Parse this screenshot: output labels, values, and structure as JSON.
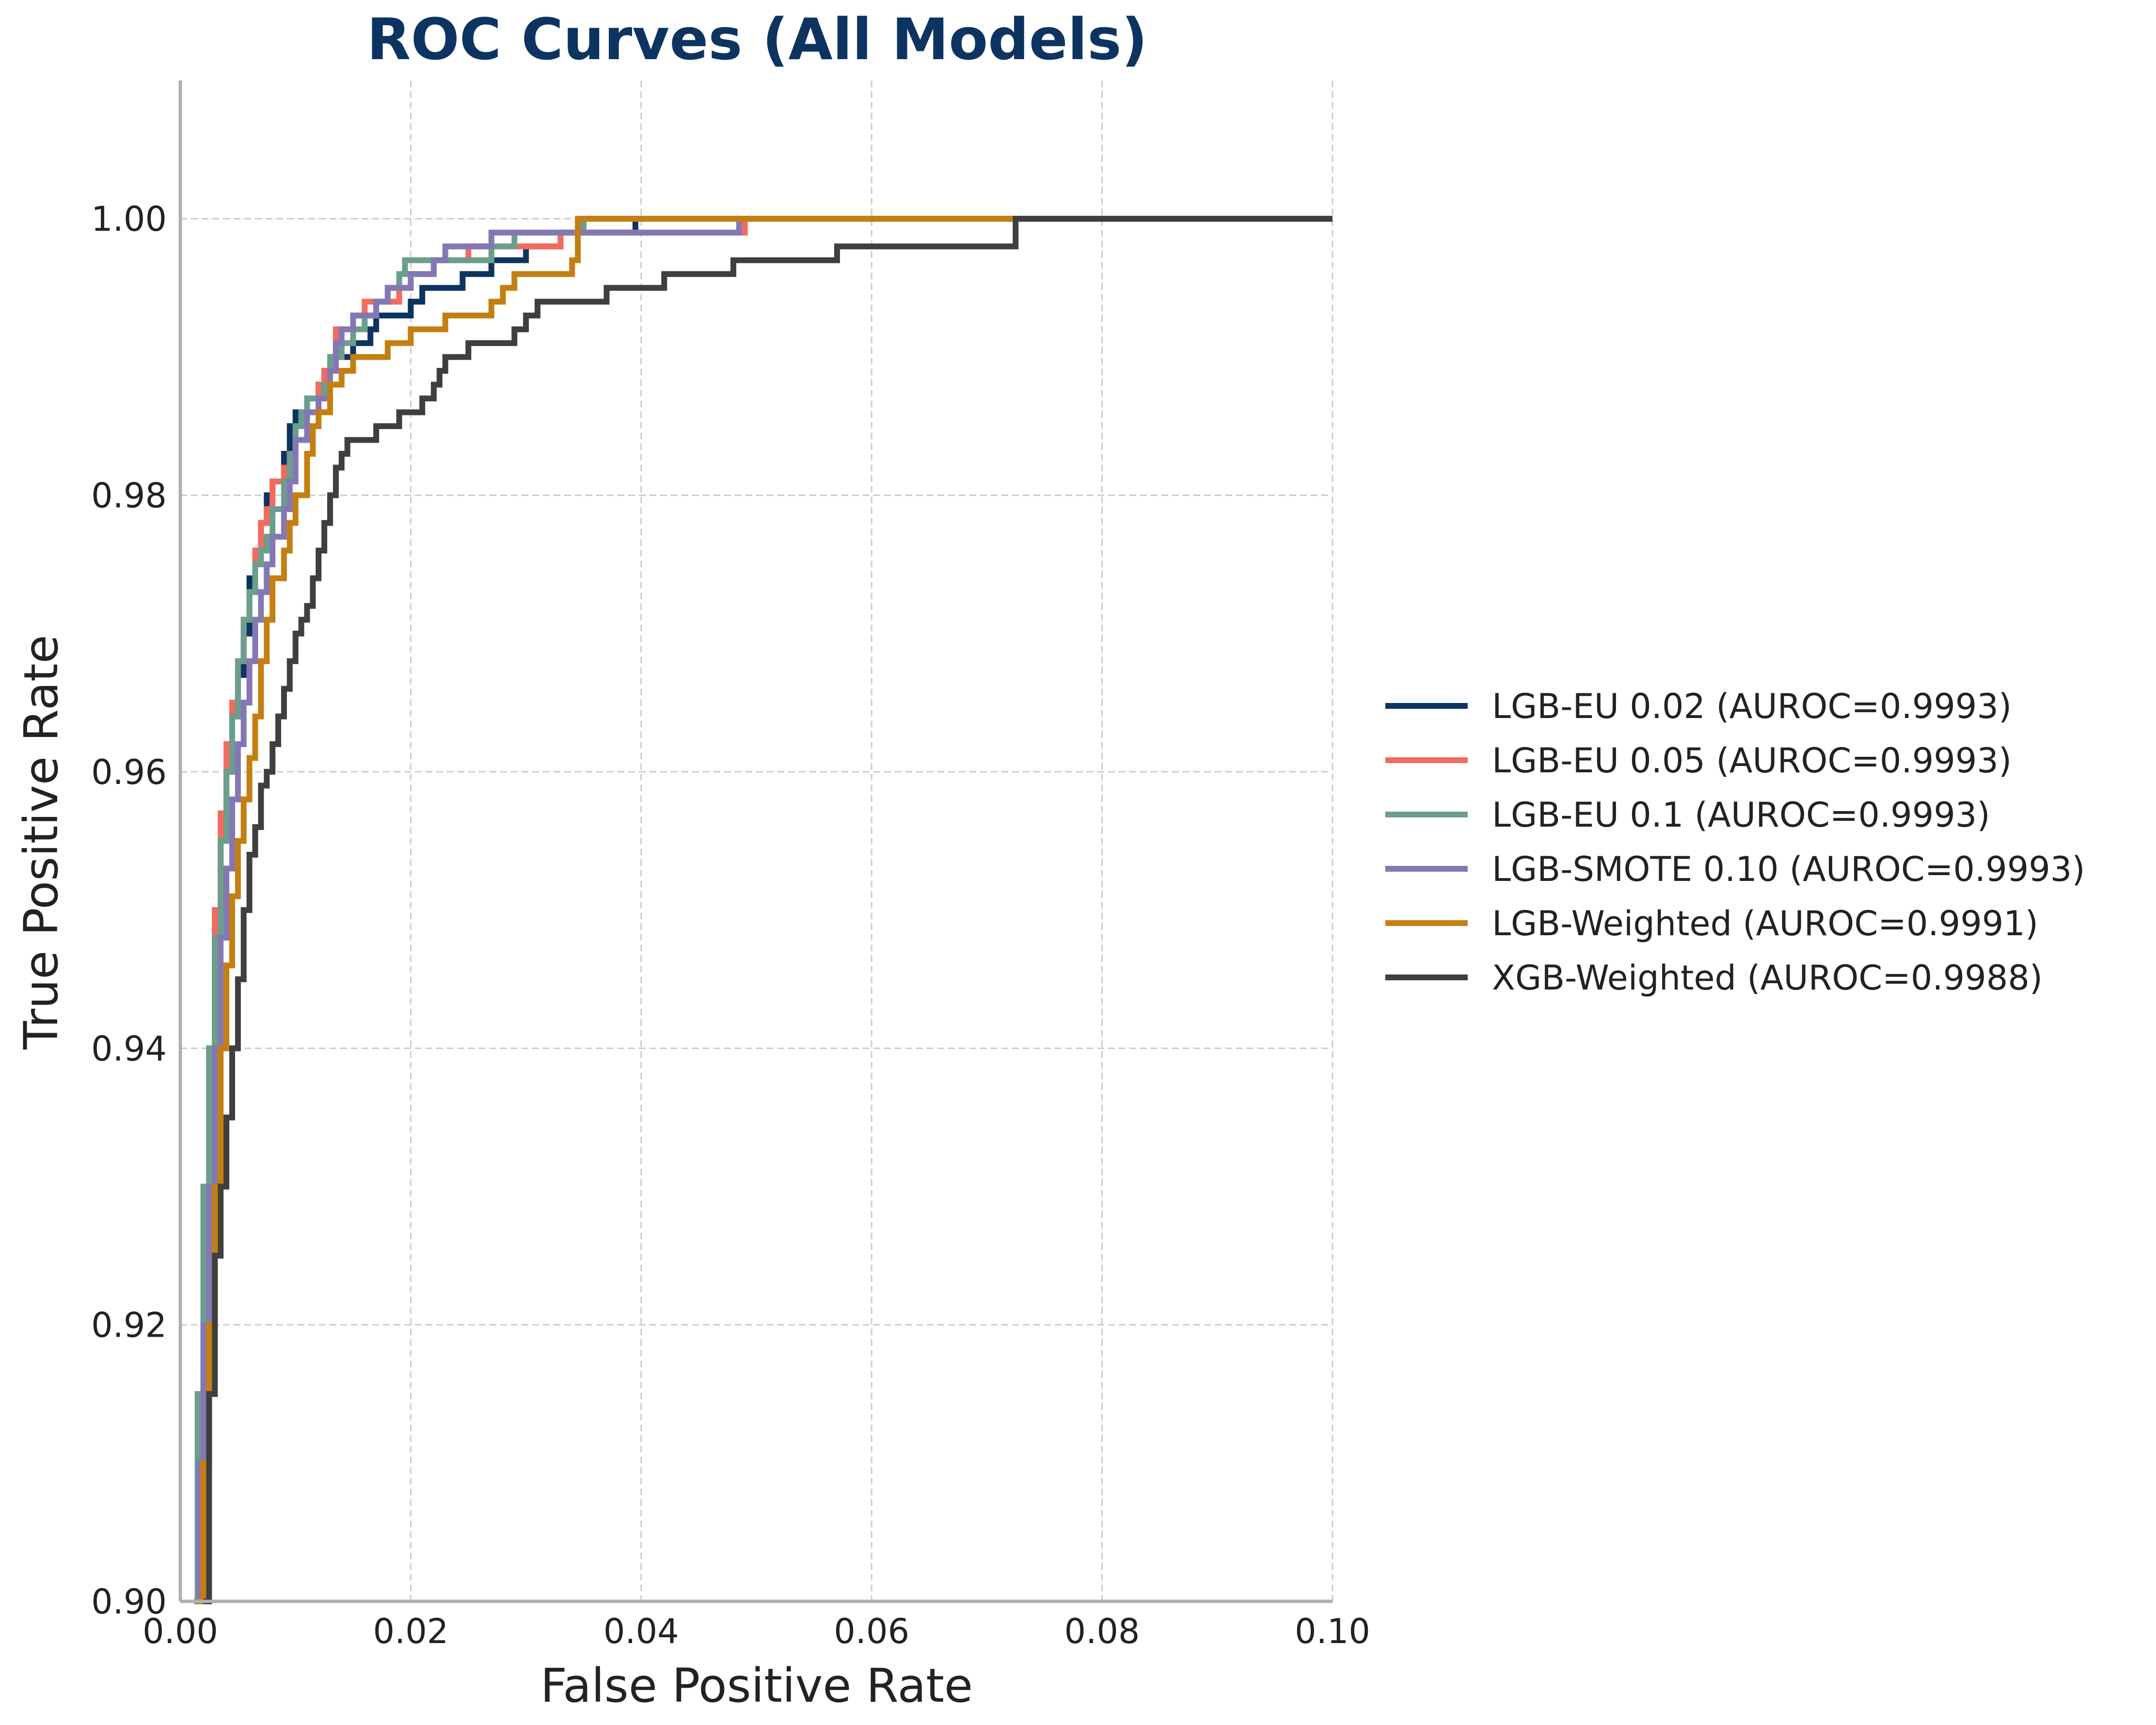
{
  "chart_data": {
    "type": "line",
    "title": "ROC Curves (All Models)",
    "xlabel": "False Positive Rate",
    "ylabel": "True Positive Rate",
    "xlim": [
      0.0,
      0.1
    ],
    "ylim": [
      0.9,
      1.01
    ],
    "xticks": [
      "0.00",
      "0.02",
      "0.04",
      "0.06",
      "0.08",
      "0.10"
    ],
    "yticks": [
      "0.90",
      "0.92",
      "0.94",
      "0.96",
      "0.98",
      "1.00"
    ],
    "grid": true,
    "legend": "right",
    "series": [
      {
        "name": "LGB-EU 0.02 (AUROC=0.9993)",
        "color": "#0d3461",
        "x": [
          0.0013,
          0.0016,
          0.002,
          0.0025,
          0.003,
          0.0035,
          0.004,
          0.0045,
          0.005,
          0.0055,
          0.006,
          0.0065,
          0.007,
          0.0075,
          0.008,
          0.009,
          0.0095,
          0.01,
          0.011,
          0.012,
          0.0125,
          0.013,
          0.0135,
          0.014,
          0.015,
          0.016,
          0.0165,
          0.017,
          0.018,
          0.019,
          0.02,
          0.021,
          0.022,
          0.024,
          0.0245,
          0.027,
          0.03,
          0.033,
          0.035,
          0.039,
          0.0395,
          0.1
        ],
        "y": [
          0.9,
          0.91,
          0.925,
          0.94,
          0.95,
          0.955,
          0.96,
          0.964,
          0.967,
          0.97,
          0.974,
          0.976,
          0.978,
          0.98,
          0.981,
          0.983,
          0.985,
          0.986,
          0.987,
          0.988,
          0.989,
          0.99,
          0.99,
          0.99,
          0.991,
          0.991,
          0.992,
          0.993,
          0.993,
          0.993,
          0.994,
          0.995,
          0.995,
          0.995,
          0.996,
          0.997,
          0.998,
          0.999,
          0.999,
          0.999,
          1.0,
          1.0
        ]
      },
      {
        "name": "LGB-EU 0.05 (AUROC=0.9993)",
        "color": "#f26b5e",
        "x": [
          0.0013,
          0.0016,
          0.002,
          0.0025,
          0.003,
          0.0035,
          0.004,
          0.0045,
          0.005,
          0.0055,
          0.006,
          0.0065,
          0.007,
          0.0075,
          0.008,
          0.009,
          0.0095,
          0.01,
          0.011,
          0.012,
          0.0125,
          0.013,
          0.0135,
          0.014,
          0.015,
          0.016,
          0.017,
          0.018,
          0.019,
          0.02,
          0.022,
          0.025,
          0.028,
          0.03,
          0.033,
          0.035,
          0.048,
          0.049,
          0.1
        ],
        "y": [
          0.9,
          0.91,
          0.925,
          0.94,
          0.95,
          0.957,
          0.962,
          0.965,
          0.968,
          0.971,
          0.973,
          0.976,
          0.978,
          0.979,
          0.981,
          0.982,
          0.983,
          0.985,
          0.986,
          0.988,
          0.989,
          0.99,
          0.992,
          0.992,
          0.993,
          0.994,
          0.994,
          0.994,
          0.995,
          0.996,
          0.997,
          0.998,
          0.998,
          0.998,
          0.999,
          0.999,
          0.999,
          1.0,
          1.0
        ]
      },
      {
        "name": "LGB-EU 0.1 (AUROC=0.9993)",
        "color": "#6b9e8c",
        "x": [
          0.0012,
          0.0015,
          0.002,
          0.0025,
          0.003,
          0.0035,
          0.004,
          0.0045,
          0.005,
          0.0055,
          0.006,
          0.0065,
          0.007,
          0.0075,
          0.008,
          0.009,
          0.0095,
          0.01,
          0.0105,
          0.011,
          0.012,
          0.0125,
          0.013,
          0.014,
          0.015,
          0.016,
          0.017,
          0.018,
          0.019,
          0.0195,
          0.022,
          0.025,
          0.027,
          0.029,
          0.03,
          0.035,
          0.1
        ],
        "y": [
          0.9,
          0.915,
          0.93,
          0.94,
          0.948,
          0.955,
          0.96,
          0.964,
          0.968,
          0.971,
          0.973,
          0.975,
          0.976,
          0.977,
          0.979,
          0.981,
          0.983,
          0.985,
          0.986,
          0.987,
          0.987,
          0.988,
          0.99,
          0.991,
          0.992,
          0.993,
          0.994,
          0.995,
          0.996,
          0.997,
          0.997,
          0.997,
          0.998,
          0.999,
          0.999,
          1.0,
          1.0
        ]
      },
      {
        "name": "LGB-SMOTE 0.10 (AUROC=0.9993)",
        "color": "#8478b4",
        "x": [
          0.0013,
          0.0016,
          0.002,
          0.0025,
          0.003,
          0.0035,
          0.004,
          0.0045,
          0.005,
          0.0055,
          0.006,
          0.0065,
          0.007,
          0.0075,
          0.008,
          0.009,
          0.0095,
          0.01,
          0.011,
          0.012,
          0.013,
          0.0135,
          0.014,
          0.015,
          0.016,
          0.017,
          0.018,
          0.019,
          0.02,
          0.021,
          0.022,
          0.023,
          0.025,
          0.027,
          0.03,
          0.035,
          0.048,
          0.0485,
          0.1
        ],
        "y": [
          0.9,
          0.91,
          0.92,
          0.93,
          0.94,
          0.948,
          0.953,
          0.958,
          0.962,
          0.965,
          0.968,
          0.971,
          0.973,
          0.975,
          0.977,
          0.979,
          0.981,
          0.984,
          0.986,
          0.987,
          0.989,
          0.991,
          0.992,
          0.993,
          0.993,
          0.994,
          0.995,
          0.995,
          0.996,
          0.996,
          0.997,
          0.998,
          0.998,
          0.999,
          0.999,
          0.999,
          0.999,
          1.0,
          1.0
        ]
      },
      {
        "name": "LGB-Weighted (AUROC=0.9991)",
        "color": "#c47f12",
        "x": [
          0.0015,
          0.002,
          0.0025,
          0.003,
          0.0035,
          0.004,
          0.0045,
          0.005,
          0.0055,
          0.006,
          0.0065,
          0.007,
          0.0075,
          0.008,
          0.009,
          0.0095,
          0.01,
          0.011,
          0.0115,
          0.012,
          0.013,
          0.014,
          0.015,
          0.016,
          0.018,
          0.019,
          0.02,
          0.021,
          0.022,
          0.023,
          0.025,
          0.026,
          0.027,
          0.028,
          0.029,
          0.03,
          0.033,
          0.034,
          0.0345,
          0.072,
          0.0725,
          0.1
        ],
        "y": [
          0.9,
          0.91,
          0.92,
          0.93,
          0.94,
          0.946,
          0.951,
          0.955,
          0.958,
          0.961,
          0.964,
          0.968,
          0.971,
          0.974,
          0.976,
          0.978,
          0.98,
          0.983,
          0.985,
          0.986,
          0.988,
          0.989,
          0.99,
          0.99,
          0.991,
          0.991,
          0.992,
          0.992,
          0.992,
          0.993,
          0.993,
          0.993,
          0.994,
          0.995,
          0.996,
          0.996,
          0.996,
          0.997,
          1.0,
          1.0,
          1.0,
          1.0
        ]
      },
      {
        "name": "XGB-Weighted (AUROC=0.9988)",
        "color": "#3f3f3f",
        "x": [
          0.002,
          0.0025,
          0.003,
          0.0035,
          0.004,
          0.0045,
          0.005,
          0.0055,
          0.006,
          0.0065,
          0.007,
          0.0075,
          0.008,
          0.0085,
          0.009,
          0.0095,
          0.01,
          0.0105,
          0.011,
          0.0115,
          0.012,
          0.0125,
          0.013,
          0.0135,
          0.014,
          0.0145,
          0.015,
          0.017,
          0.018,
          0.019,
          0.02,
          0.021,
          0.022,
          0.0225,
          0.023,
          0.025,
          0.027,
          0.028,
          0.029,
          0.03,
          0.031,
          0.032,
          0.035,
          0.037,
          0.039,
          0.042,
          0.045,
          0.048,
          0.052,
          0.057,
          0.07,
          0.0725,
          0.1
        ],
        "y": [
          0.9,
          0.915,
          0.925,
          0.93,
          0.935,
          0.94,
          0.945,
          0.95,
          0.954,
          0.956,
          0.959,
          0.96,
          0.962,
          0.964,
          0.966,
          0.968,
          0.97,
          0.971,
          0.972,
          0.974,
          0.976,
          0.978,
          0.98,
          0.982,
          0.983,
          0.984,
          0.984,
          0.985,
          0.985,
          0.986,
          0.986,
          0.987,
          0.988,
          0.989,
          0.99,
          0.991,
          0.991,
          0.991,
          0.992,
          0.993,
          0.994,
          0.994,
          0.994,
          0.995,
          0.995,
          0.996,
          0.996,
          0.997,
          0.997,
          0.998,
          0.998,
          1.0,
          1.0
        ]
      }
    ]
  }
}
